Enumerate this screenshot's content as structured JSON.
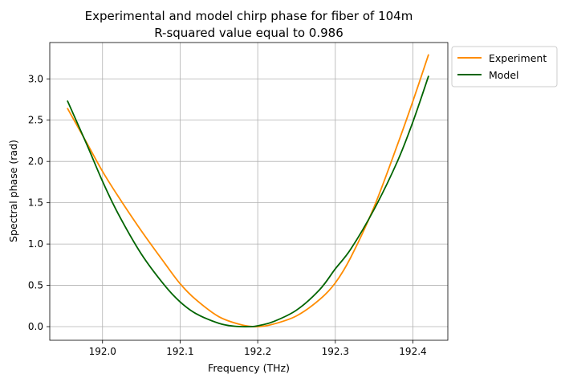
{
  "chart_data": {
    "type": "line",
    "title": "Experimental and model chirp phase for fiber of 104m",
    "subtitle": "R-squared value equal to 0.986",
    "xlabel": "Frequency (THz)",
    "ylabel": "Spectral phase (rad)",
    "xlim": [
      191.932,
      192.445
    ],
    "ylim": [
      -0.165,
      3.44
    ],
    "xticks": [
      "192.0",
      "192.1",
      "192.2",
      "192.3",
      "192.4"
    ],
    "yticks": [
      "0.0",
      "0.5",
      "1.0",
      "1.5",
      "2.0",
      "2.5",
      "3.0"
    ],
    "grid": true,
    "legend_position": "outside-top-right",
    "series": [
      {
        "name": "Experiment",
        "color": "#ff8c00",
        "x": [
          191.955,
          191.98,
          192.0,
          192.02,
          192.05,
          192.08,
          192.1,
          192.12,
          192.15,
          192.18,
          192.2,
          192.22,
          192.25,
          192.28,
          192.3,
          192.32,
          192.35,
          192.38,
          192.4,
          192.42
        ],
        "y": [
          2.64,
          2.22,
          1.88,
          1.58,
          1.16,
          0.77,
          0.52,
          0.33,
          0.12,
          0.02,
          0.0,
          0.03,
          0.13,
          0.33,
          0.53,
          0.84,
          1.45,
          2.2,
          2.73,
          3.29
        ]
      },
      {
        "name": "Model",
        "color": "#006400",
        "x": [
          191.955,
          191.98,
          192.0,
          192.02,
          192.05,
          192.08,
          192.1,
          192.12,
          192.15,
          192.17,
          192.19,
          192.2,
          192.22,
          192.25,
          192.28,
          192.3,
          192.32,
          192.35,
          192.38,
          192.4,
          192.42
        ],
        "y": [
          2.73,
          2.2,
          1.76,
          1.37,
          0.88,
          0.5,
          0.3,
          0.16,
          0.04,
          0.005,
          0.0,
          0.01,
          0.06,
          0.2,
          0.45,
          0.7,
          0.94,
          1.42,
          2.0,
          2.48,
          3.03
        ]
      }
    ]
  }
}
